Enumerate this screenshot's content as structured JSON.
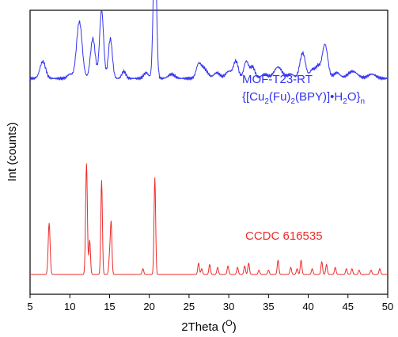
{
  "chart_data": {
    "type": "line",
    "title": "",
    "xlabel": "2Theta (",
    "xlabel_superscript": "O",
    "xlabel_close": ")",
    "ylabel": "Int (counts)",
    "xlim": [
      5,
      50
    ],
    "xticks": [
      5,
      10,
      15,
      20,
      25,
      30,
      35,
      40,
      45,
      50
    ],
    "y_ticks_labeled": false,
    "grid": false,
    "series": [
      {
        "name": "MOF-T23-RT",
        "formula": {
          "open": "{[Cu",
          "sub1": "2",
          "mid1": "(Fu)",
          "sub2": "2",
          "mid2": "(BPY)]•H",
          "sub3": "2",
          "mid3": "O}",
          "sub4": "n"
        },
        "color": "#3333ee",
        "baseline": 0.76,
        "noise": 0.006,
        "peaks": [
          [
            6.6,
            0.06,
            0.35
          ],
          [
            10.0,
            0.015,
            0.3
          ],
          [
            11.2,
            0.2,
            0.35
          ],
          [
            12.9,
            0.14,
            0.3
          ],
          [
            14.0,
            0.24,
            0.25
          ],
          [
            15.1,
            0.14,
            0.25
          ],
          [
            16.8,
            0.025,
            0.25
          ],
          [
            19.6,
            0.02,
            0.3
          ],
          [
            20.7,
            0.5,
            0.2
          ],
          [
            22.8,
            0.015,
            0.4
          ],
          [
            26.2,
            0.05,
            0.3
          ],
          [
            26.8,
            0.03,
            0.3
          ],
          [
            27.3,
            0.015,
            0.3
          ],
          [
            28.5,
            0.02,
            0.4
          ],
          [
            30.0,
            0.025,
            0.4
          ],
          [
            30.9,
            0.06,
            0.3
          ],
          [
            32.2,
            0.06,
            0.3
          ],
          [
            33.0,
            0.04,
            0.3
          ],
          [
            34.5,
            0.015,
            0.4
          ],
          [
            36.2,
            0.04,
            0.5
          ],
          [
            37.8,
            0.015,
            0.4
          ],
          [
            39.3,
            0.09,
            0.35
          ],
          [
            40.5,
            0.03,
            0.3
          ],
          [
            41.2,
            0.04,
            0.3
          ],
          [
            42.1,
            0.12,
            0.35
          ],
          [
            43.6,
            0.02,
            0.4
          ],
          [
            45.6,
            0.025,
            0.6
          ],
          [
            48.0,
            0.015,
            0.5
          ]
        ]
      },
      {
        "name": "CCDC 616535",
        "color": "#ee2a2a",
        "baseline": 0.07,
        "noise": 0.0,
        "peaks": [
          [
            7.4,
            0.18,
            0.12
          ],
          [
            12.1,
            0.39,
            0.11
          ],
          [
            12.5,
            0.12,
            0.1
          ],
          [
            14.0,
            0.33,
            0.1
          ],
          [
            15.0,
            0.06,
            0.1
          ],
          [
            15.2,
            0.18,
            0.1
          ],
          [
            19.2,
            0.02,
            0.1
          ],
          [
            20.7,
            0.34,
            0.1
          ],
          [
            26.2,
            0.04,
            0.1
          ],
          [
            26.6,
            0.02,
            0.1
          ],
          [
            27.6,
            0.035,
            0.1
          ],
          [
            28.6,
            0.025,
            0.1
          ],
          [
            29.9,
            0.03,
            0.1
          ],
          [
            31.1,
            0.025,
            0.1
          ],
          [
            32.0,
            0.03,
            0.1
          ],
          [
            32.5,
            0.04,
            0.1
          ],
          [
            33.8,
            0.015,
            0.1
          ],
          [
            35.0,
            0.015,
            0.1
          ],
          [
            36.2,
            0.05,
            0.1
          ],
          [
            37.8,
            0.025,
            0.1
          ],
          [
            38.6,
            0.02,
            0.1
          ],
          [
            39.1,
            0.05,
            0.1
          ],
          [
            40.5,
            0.02,
            0.1
          ],
          [
            41.7,
            0.045,
            0.1
          ],
          [
            42.3,
            0.035,
            0.1
          ],
          [
            43.4,
            0.025,
            0.1
          ],
          [
            44.8,
            0.02,
            0.1
          ],
          [
            45.5,
            0.02,
            0.1
          ],
          [
            46.4,
            0.015,
            0.1
          ],
          [
            47.9,
            0.015,
            0.1
          ],
          [
            49.0,
            0.02,
            0.1
          ]
        ]
      }
    ]
  }
}
